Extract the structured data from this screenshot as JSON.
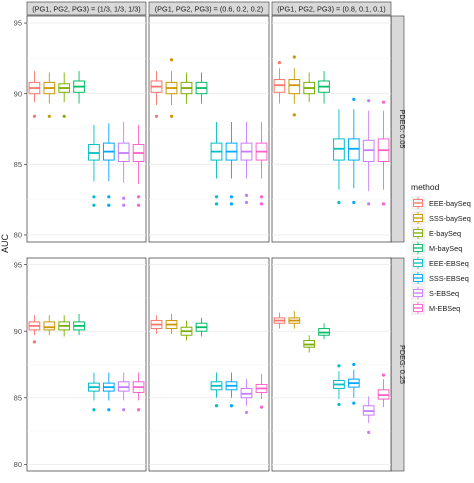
{
  "chart_data": {
    "type": "box",
    "title": "",
    "ylabel": "AUC",
    "ylim": [
      79.5,
      95.5
    ],
    "yticks": [
      80,
      85,
      90,
      95
    ],
    "grid": true,
    "legend_position": "right",
    "legend_title": "method",
    "methods": [
      "EEE-baySeq",
      "SSS-baySeq",
      "E-baySeq",
      "M-baySeq",
      "EEE-EBSeq",
      "SSS-EBSeq",
      "S-EBSeq",
      "M-EBSeq"
    ],
    "colors": [
      "#F8766D",
      "#CD9600",
      "#7CAE00",
      "#00BE67",
      "#00BFC4",
      "#00A9FF",
      "#C77CFF",
      "#FF61CC"
    ],
    "columns": [
      "(PG1, PG2, PG3) = (1/3, 1/3, 1/3)",
      "(PG1, PG2, PG3) = (0.6, 0.2, 0.2)",
      "(PG1, PG2, PG3) = (0.8, 0.1, 0.1)"
    ],
    "rows": [
      "PDEG: 0.05",
      "PDEG: 0.25"
    ],
    "panels": [
      {
        "row": 0,
        "col": 0,
        "boxes": [
          {
            "method": "EEE-baySeq",
            "lw": 89.4,
            "q1": 90.0,
            "med": 90.4,
            "q3": 90.8,
            "uw": 91.6,
            "out": [
              88.4
            ]
          },
          {
            "method": "SSS-baySeq",
            "lw": 89.3,
            "q1": 90.0,
            "med": 90.4,
            "q3": 90.8,
            "uw": 91.5,
            "out": [
              88.4
            ]
          },
          {
            "method": "E-baySeq",
            "lw": 89.4,
            "q1": 90.1,
            "med": 90.4,
            "q3": 90.7,
            "uw": 91.5,
            "out": [
              88.4
            ]
          },
          {
            "method": "M-baySeq",
            "lw": 89.3,
            "q1": 90.1,
            "med": 90.5,
            "q3": 90.9,
            "uw": 91.6,
            "out": []
          },
          {
            "method": "EEE-EBSeq",
            "lw": 83.8,
            "q1": 85.3,
            "med": 85.8,
            "q3": 86.4,
            "uw": 87.8,
            "out": [
              82.7,
              82.1
            ]
          },
          {
            "method": "SSS-EBSeq",
            "lw": 83.8,
            "q1": 85.3,
            "med": 85.9,
            "q3": 86.5,
            "uw": 87.9,
            "out": [
              82.7,
              82.1
            ]
          },
          {
            "method": "S-EBSeq",
            "lw": 83.7,
            "q1": 85.2,
            "med": 85.8,
            "q3": 86.5,
            "uw": 88.0,
            "out": [
              82.6,
              82.1
            ]
          },
          {
            "method": "M-EBSeq",
            "lw": 83.6,
            "q1": 85.2,
            "med": 85.8,
            "q3": 86.4,
            "uw": 87.8,
            "out": [
              82.7,
              82.1
            ]
          }
        ]
      },
      {
        "row": 0,
        "col": 1,
        "boxes": [
          {
            "method": "EEE-baySeq",
            "lw": 89.2,
            "q1": 90.1,
            "med": 90.5,
            "q3": 90.9,
            "uw": 91.6,
            "out": [
              88.4
            ]
          },
          {
            "method": "SSS-baySeq",
            "lw": 89.2,
            "q1": 90.0,
            "med": 90.4,
            "q3": 90.8,
            "uw": 91.6,
            "out": [
              92.4,
              88.4
            ]
          },
          {
            "method": "E-baySeq",
            "lw": 89.3,
            "q1": 90.0,
            "med": 90.4,
            "q3": 90.8,
            "uw": 91.5,
            "out": []
          },
          {
            "method": "M-baySeq",
            "lw": 89.3,
            "q1": 90.0,
            "med": 90.4,
            "q3": 90.8,
            "uw": 91.5,
            "out": []
          },
          {
            "method": "EEE-EBSeq",
            "lw": 84.0,
            "q1": 85.3,
            "med": 85.9,
            "q3": 86.5,
            "uw": 88.0,
            "out": [
              82.7,
              82.2
            ]
          },
          {
            "method": "SSS-EBSeq",
            "lw": 84.0,
            "q1": 85.3,
            "med": 85.9,
            "q3": 86.5,
            "uw": 88.0,
            "out": [
              82.7,
              82.2
            ]
          },
          {
            "method": "S-EBSeq",
            "lw": 84.0,
            "q1": 85.3,
            "med": 85.9,
            "q3": 86.5,
            "uw": 88.0,
            "out": [
              82.8,
              82.3
            ]
          },
          {
            "method": "M-EBSeq",
            "lw": 84.0,
            "q1": 85.3,
            "med": 85.9,
            "q3": 86.5,
            "uw": 88.0,
            "out": [
              82.7,
              82.2
            ]
          }
        ]
      },
      {
        "row": 0,
        "col": 2,
        "boxes": [
          {
            "method": "EEE-baySeq",
            "lw": 89.3,
            "q1": 90.1,
            "med": 90.6,
            "q3": 91.0,
            "uw": 91.8,
            "out": [
              92.2
            ]
          },
          {
            "method": "SSS-baySeq",
            "lw": 89.3,
            "q1": 90.0,
            "med": 90.6,
            "q3": 91.0,
            "uw": 91.8,
            "out": [
              92.6,
              88.5
            ]
          },
          {
            "method": "E-baySeq",
            "lw": 89.4,
            "q1": 90.0,
            "med": 90.4,
            "q3": 90.8,
            "uw": 91.5,
            "out": []
          },
          {
            "method": "M-baySeq",
            "lw": 89.3,
            "q1": 90.1,
            "med": 90.5,
            "q3": 90.9,
            "uw": 91.6,
            "out": []
          },
          {
            "method": "EEE-EBSeq",
            "lw": 83.2,
            "q1": 85.3,
            "med": 86.1,
            "q3": 86.8,
            "uw": 88.9,
            "out": [
              82.3
            ]
          },
          {
            "method": "SSS-EBSeq",
            "lw": 83.3,
            "q1": 85.3,
            "med": 86.1,
            "q3": 86.8,
            "uw": 88.9,
            "out": [
              89.6,
              82.3
            ]
          },
          {
            "method": "S-EBSeq",
            "lw": 83.1,
            "q1": 85.2,
            "med": 86.0,
            "q3": 86.7,
            "uw": 88.8,
            "out": [
              89.5,
              82.2
            ]
          },
          {
            "method": "M-EBSeq",
            "lw": 83.2,
            "q1": 85.2,
            "med": 86.0,
            "q3": 86.8,
            "uw": 88.8,
            "out": [
              89.4,
              82.2
            ]
          }
        ]
      },
      {
        "row": 1,
        "col": 0,
        "boxes": [
          {
            "method": "EEE-baySeq",
            "lw": 89.7,
            "q1": 90.1,
            "med": 90.4,
            "q3": 90.7,
            "uw": 91.2,
            "out": [
              89.2
            ]
          },
          {
            "method": "SSS-baySeq",
            "lw": 89.7,
            "q1": 90.1,
            "med": 90.3,
            "q3": 90.7,
            "uw": 91.2,
            "out": []
          },
          {
            "method": "E-baySeq",
            "lw": 89.6,
            "q1": 90.1,
            "med": 90.4,
            "q3": 90.7,
            "uw": 91.2,
            "out": []
          },
          {
            "method": "M-baySeq",
            "lw": 89.7,
            "q1": 90.1,
            "med": 90.4,
            "q3": 90.7,
            "uw": 91.3,
            "out": []
          },
          {
            "method": "EEE-EBSeq",
            "lw": 84.8,
            "q1": 85.5,
            "med": 85.8,
            "q3": 86.1,
            "uw": 86.9,
            "out": [
              84.1
            ]
          },
          {
            "method": "SSS-EBSeq",
            "lw": 84.8,
            "q1": 85.5,
            "med": 85.8,
            "q3": 86.1,
            "uw": 86.9,
            "out": [
              84.1
            ]
          },
          {
            "method": "S-EBSeq",
            "lw": 84.8,
            "q1": 85.5,
            "med": 85.8,
            "q3": 86.2,
            "uw": 86.9,
            "out": [
              84.1
            ]
          },
          {
            "method": "M-EBSeq",
            "lw": 84.8,
            "q1": 85.4,
            "med": 85.8,
            "q3": 86.2,
            "uw": 86.9,
            "out": [
              84.1
            ]
          }
        ]
      },
      {
        "row": 1,
        "col": 1,
        "boxes": [
          {
            "method": "EEE-baySeq",
            "lw": 89.8,
            "q1": 90.2,
            "med": 90.5,
            "q3": 90.8,
            "uw": 91.2,
            "out": []
          },
          {
            "method": "SSS-baySeq",
            "lw": 89.8,
            "q1": 90.2,
            "med": 90.5,
            "q3": 90.8,
            "uw": 91.3,
            "out": []
          },
          {
            "method": "E-baySeq",
            "lw": 89.3,
            "q1": 89.7,
            "med": 90.0,
            "q3": 90.3,
            "uw": 90.8,
            "out": []
          },
          {
            "method": "M-baySeq",
            "lw": 89.6,
            "q1": 90.0,
            "med": 90.3,
            "q3": 90.6,
            "uw": 91.0,
            "out": []
          },
          {
            "method": "EEE-EBSeq",
            "lw": 85.0,
            "q1": 85.6,
            "med": 85.9,
            "q3": 86.2,
            "uw": 86.9,
            "out": [
              84.4
            ]
          },
          {
            "method": "SSS-EBSeq",
            "lw": 85.0,
            "q1": 85.6,
            "med": 85.9,
            "q3": 86.2,
            "uw": 86.9,
            "out": [
              84.4
            ]
          },
          {
            "method": "S-EBSeq",
            "lw": 84.4,
            "q1": 85.0,
            "med": 85.3,
            "q3": 85.7,
            "uw": 86.4,
            "out": [
              83.9
            ]
          },
          {
            "method": "M-EBSeq",
            "lw": 84.9,
            "q1": 85.4,
            "med": 85.7,
            "q3": 86.0,
            "uw": 86.8,
            "out": [
              84.3
            ]
          }
        ]
      },
      {
        "row": 1,
        "col": 2,
        "boxes": [
          {
            "method": "EEE-baySeq",
            "lw": 90.2,
            "q1": 90.6,
            "med": 90.8,
            "q3": 91.0,
            "uw": 91.4,
            "out": []
          },
          {
            "method": "SSS-baySeq",
            "lw": 90.2,
            "q1": 90.6,
            "med": 90.8,
            "q3": 91.0,
            "uw": 91.5,
            "out": []
          },
          {
            "method": "E-baySeq",
            "lw": 88.4,
            "q1": 88.8,
            "med": 89.0,
            "q3": 89.3,
            "uw": 89.7,
            "out": []
          },
          {
            "method": "M-baySeq",
            "lw": 89.4,
            "q1": 89.7,
            "med": 89.9,
            "q3": 90.2,
            "uw": 90.6,
            "out": []
          },
          {
            "method": "EEE-EBSeq",
            "lw": 84.9,
            "q1": 85.7,
            "med": 86.0,
            "q3": 86.3,
            "uw": 87.0,
            "out": [
              87.4,
              84.5
            ]
          },
          {
            "method": "SSS-EBSeq",
            "lw": 85.0,
            "q1": 85.8,
            "med": 86.1,
            "q3": 86.4,
            "uw": 87.1,
            "out": [
              87.5,
              84.6
            ]
          },
          {
            "method": "S-EBSeq",
            "lw": 83.1,
            "q1": 83.7,
            "med": 84.0,
            "q3": 84.4,
            "uw": 85.1,
            "out": [
              82.4
            ]
          },
          {
            "method": "M-EBSeq",
            "lw": 84.3,
            "q1": 84.9,
            "med": 85.2,
            "q3": 85.6,
            "uw": 86.4,
            "out": [
              86.7
            ]
          }
        ]
      }
    ]
  }
}
